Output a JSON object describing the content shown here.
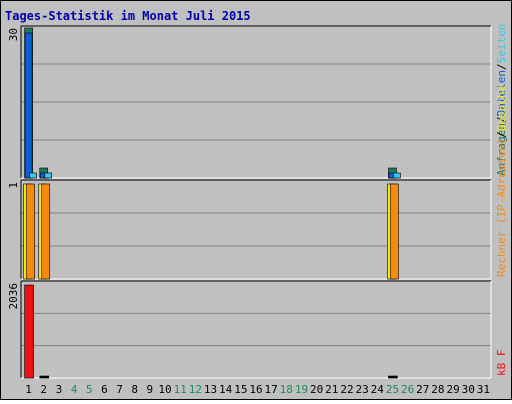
{
  "chart_data": {
    "type": "bar",
    "title": "Tages-Statistik im Monat Juli 2015",
    "categories": [
      "1",
      "2",
      "3",
      "4",
      "5",
      "6",
      "7",
      "8",
      "9",
      "10",
      "11",
      "12",
      "13",
      "14",
      "15",
      "16",
      "17",
      "18",
      "19",
      "20",
      "21",
      "22",
      "23",
      "24",
      "25",
      "26",
      "27",
      "28",
      "29",
      "30",
      "31"
    ],
    "weekend_days": [
      "4",
      "5",
      "11",
      "12",
      "18",
      "19",
      "25",
      "26"
    ],
    "panels": [
      {
        "max_label": "30",
        "ymax": 30,
        "series": [
          {
            "name": "Anfragen",
            "color": "#1e7a5e",
            "values": {
              "1": 30,
              "2": 2,
              "25": 2
            }
          },
          {
            "name": "Dateien",
            "color": "#0b5fd6",
            "values": {
              "1": 29,
              "2": 1,
              "25": 1
            }
          },
          {
            "name": "Seiten",
            "color": "#39c6e8",
            "values": {
              "1": 1,
              "2": 1,
              "25": 1
            }
          }
        ],
        "legend": [
          {
            "text": "Anfragen",
            "color": "#1e7a5e"
          },
          {
            "text": "/",
            "color": "#000000"
          },
          {
            "text": "Dateien",
            "color": "#0b5fd6"
          },
          {
            "text": "/",
            "color": "#000000"
          },
          {
            "text": "Seiten",
            "color": "#39c6e8"
          }
        ]
      },
      {
        "max_label": "1",
        "ymax": 1,
        "series": [
          {
            "name": "Besuche",
            "color": "#f5e614",
            "values": {
              "1": 1,
              "2": 1,
              "25": 1
            }
          },
          {
            "name": "Rechner (IP-Adressen)",
            "color": "#f58b0f",
            "values": {
              "1": 1,
              "2": 1,
              "25": 1
            }
          }
        ],
        "legend": [
          {
            "text": "Rechner (IP-Adressen)",
            "color": "#f58b0f"
          },
          {
            "text": "/",
            "color": "#000000"
          },
          {
            "text": "Besuche",
            "color": "#f5e614"
          }
        ]
      },
      {
        "max_label": "2036",
        "ymax": 2036,
        "series": [
          {
            "name": "kB F",
            "color": "#ee1111",
            "values": {
              "1": 2036,
              "2": 15,
              "25": 15
            }
          }
        ],
        "legend": [
          {
            "text": "kB F",
            "color": "#ee1111"
          }
        ]
      }
    ],
    "grid": true
  }
}
